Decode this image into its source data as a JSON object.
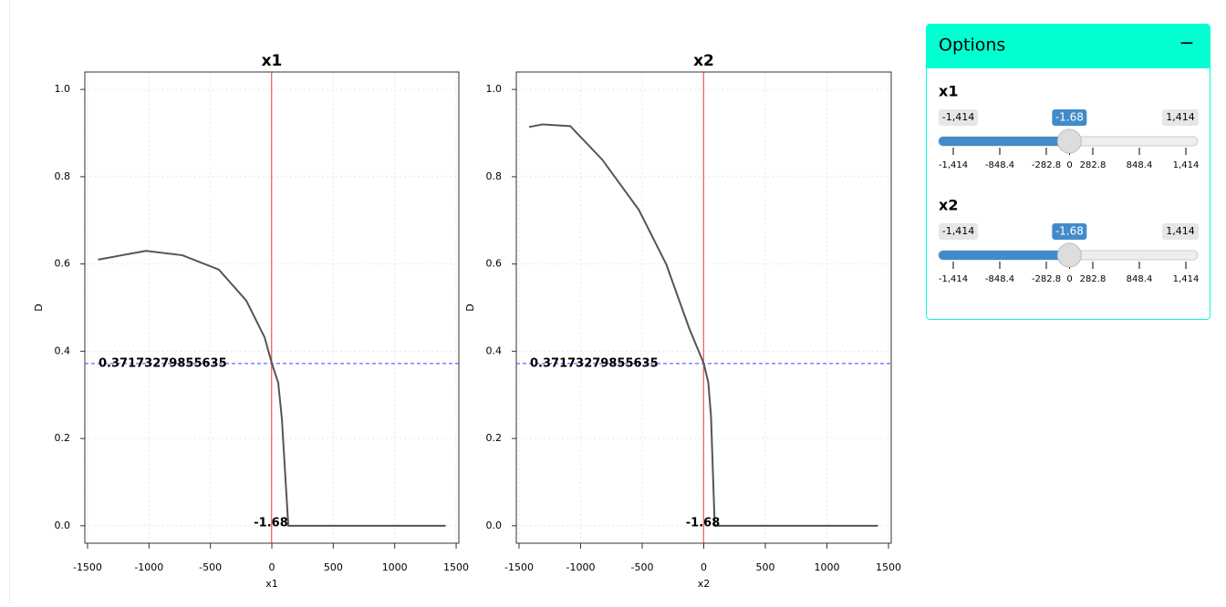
{
  "chart_data": [
    {
      "type": "line",
      "title": "x1",
      "x_label": "x1",
      "y_label": "D",
      "color": "#555555",
      "x": [
        -1414,
        -1025,
        -728,
        -431,
        -208,
        -59,
        0,
        52,
        82,
        134,
        1414
      ],
      "values": [
        0.61,
        0.63,
        0.62,
        0.587,
        0.516,
        0.432,
        0.372,
        0.328,
        0.244,
        0,
        0
      ],
      "xlim": [
        -1522,
        1522
      ],
      "ylim": [
        -0.04,
        1.04
      ],
      "xticks": [
        -1500,
        -1000,
        -500,
        0,
        500,
        1000,
        1500
      ],
      "yticks": [
        {
          "value": 0,
          "label": "0.0"
        },
        0.2,
        0.4,
        0.6,
        0.8,
        {
          "value": 1,
          "label": "1.0"
        }
      ],
      "grid": true,
      "vline": -1.68,
      "vline_color": "#ff3030",
      "hline": 0.37173279855635,
      "hline_color": "#4040ff"
    },
    {
      "type": "line",
      "title": "x2",
      "x_label": "x2",
      "y_label": "D",
      "color": "#555555",
      "x": [
        -1418,
        -1307,
        -1084,
        -824,
        -527,
        -304,
        -119,
        0,
        37,
        59,
        89,
        1414
      ],
      "values": [
        0.914,
        0.92,
        0.916,
        0.839,
        0.724,
        0.599,
        0.453,
        0.372,
        0.328,
        0.25,
        0,
        0
      ],
      "xlim": [
        -1522,
        1522
      ],
      "ylim": [
        -0.04,
        1.04
      ],
      "xticks": [
        -1500,
        -1000,
        -500,
        0,
        500,
        1000,
        1500
      ],
      "yticks": [
        {
          "value": 0,
          "label": "0.0"
        },
        0.2,
        0.4,
        0.6,
        0.8,
        {
          "value": 1,
          "label": "1.0"
        }
      ],
      "grid": true,
      "vline": -1.68,
      "vline_color": "#ff3030",
      "hline": 0.37173279855635,
      "hline_color": "#4040ff"
    }
  ],
  "options": {
    "title": "Options",
    "collapse": "−",
    "sliders": [
      {
        "label": "x1",
        "min": {
          "value": -1414,
          "label": "-1,414"
        },
        "max": {
          "value": 1414,
          "label": "1,414"
        },
        "value": -1.68,
        "ticks": [
          {
            "value": -1414,
            "label": "-1,414"
          },
          -848.4,
          -282.8,
          0,
          282.8,
          848.4,
          {
            "value": 1414,
            "label": "1,414"
          }
        ]
      },
      {
        "label": "x2",
        "min": {
          "value": -1414,
          "label": "-1,414"
        },
        "max": {
          "value": 1414,
          "label": "1,414"
        },
        "value": -1.68,
        "ticks": [
          {
            "value": -1414,
            "label": "-1,414"
          },
          -848.4,
          -282.8,
          0,
          282.8,
          848.4,
          {
            "value": 1414,
            "label": "1,414"
          }
        ]
      }
    ]
  }
}
